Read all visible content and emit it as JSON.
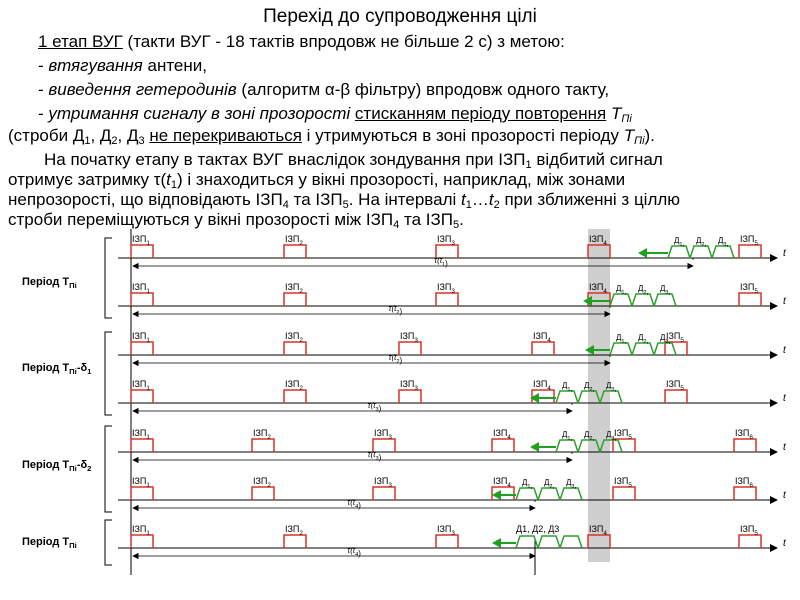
{
  "title": "Перехід до супроводження цілі",
  "intro": {
    "l1_u": "1 етап ВУГ",
    "l1_rest": " (такти ВУГ  - 18 тактів впродовж не більше 2 с) з метою:",
    "l2_dash": "- ",
    "l2_em": "втягування",
    "l2_rest": " антени,",
    "l3_dash": "- ",
    "l3_em": "виведення гетеродинів",
    "l3_rest": " (алгоритм α-β фільтру) впродовж одного такту,",
    "l4_dash": "- ",
    "l4_em": "утримання сигналу в зоні прозорості",
    "l4_sp": " ",
    "l4_u": "стисканням періоду повторення",
    "l4_T": " T",
    "l4_sub": "Пі",
    "l5_a": "(строби Д",
    "l5_s1": "1",
    "l5_b": ", Д",
    "l5_s2": "2",
    "l5_c": ", Д",
    "l5_s3": "3",
    "l5_d": " ",
    "l5_u": "не перекриваються",
    "l5_e": " і утримуються в зоні прозорості періоду ",
    "l5_T": "T",
    "l5_sub": "Пі",
    "l5_f": ")."
  },
  "para": {
    "p1_a": "На початку етапу в тактах ВУГ внаслідок зондування при ІЗП",
    "p1_s": "1",
    "p1_b": " відбитий сигнал",
    "p2_a": "отримує затримку τ(",
    "p2_t": "t",
    "p2_s": "1",
    "p2_b": ") і знаходиться у вікні прозорості, наприклад, між зонами",
    "p3_a": "непрозорості, що відповідають ІЗП",
    "p3_s1": "4",
    "p3_b": " та ІЗП",
    "p3_s2": "5",
    "p3_c": ". На інтервалі ",
    "p3_t1": "t",
    "p3_s3": "1",
    "p3_d": "…",
    "p3_t2": "t",
    "p3_s4": "2",
    "p3_e": " при зближенні з ціллю",
    "p4_a": "строби переміщуються у вікні прозорості між ІЗП",
    "p4_s1": "4",
    "p4_b": " та ІЗП",
    "p4_s2": "5",
    "p4_c": "."
  },
  "groups": [
    {
      "label": "Період Т",
      "sub": "Пі",
      "suffix": ""
    },
    {
      "label": "Період Т",
      "sub": "Пі",
      "suffix": "-δ",
      "suffix_sub": "1"
    },
    {
      "label": "Період Т",
      "sub": "Пі",
      "suffix": "-δ",
      "suffix_sub": "2"
    },
    {
      "label": "Період Т",
      "sub": "Пі",
      "suffix": ""
    }
  ],
  "pulse_prefix": "ІЗП",
  "strobe_prefix": "Д",
  "axis_label": "t",
  "delay_prefix": "τ(t",
  "delay_suffix": ")",
  "rows": [
    {
      "pulses": [
        1,
        2,
        3,
        4,
        5
      ],
      "strobes": [
        1,
        2,
        3
      ],
      "delay": 1,
      "tau_label": 1
    },
    {
      "pulses": [
        1,
        2,
        3,
        4,
        5
      ],
      "strobes": [
        1,
        2,
        3
      ],
      "delay": 2,
      "tau_label": 2
    },
    {
      "pulses": [
        1,
        2,
        3,
        4,
        5
      ],
      "strobes": [
        1,
        2,
        3
      ],
      "delay": 2,
      "tau_label": 2
    },
    {
      "pulses": [
        1,
        2,
        3,
        4,
        5
      ],
      "strobes": [
        1,
        2,
        3
      ],
      "delay": 3,
      "tau_label": 3
    },
    {
      "pulses": [
        1,
        2,
        3,
        4,
        5,
        6
      ],
      "strobes": [
        1,
        2,
        3
      ],
      "delay": 3,
      "tau_label": 3
    },
    {
      "pulses": [
        1,
        2,
        3,
        4,
        5,
        6
      ],
      "strobes": [
        1,
        2,
        3
      ],
      "delay": 4,
      "tau_label": 4
    },
    {
      "pulses": [
        1,
        2,
        3,
        4,
        5
      ],
      "strobes": [
        1,
        2,
        3
      ],
      "delay": 4,
      "tau_label": 4
    }
  ],
  "last_row_strobe_text": "Д1, Д2, Д3",
  "colors": {
    "pulse": "#d9342b",
    "strobe": "#2ca02c",
    "arrow": "#1fa11f",
    "highlight": "#cfcfcf",
    "axis": "#000000"
  }
}
